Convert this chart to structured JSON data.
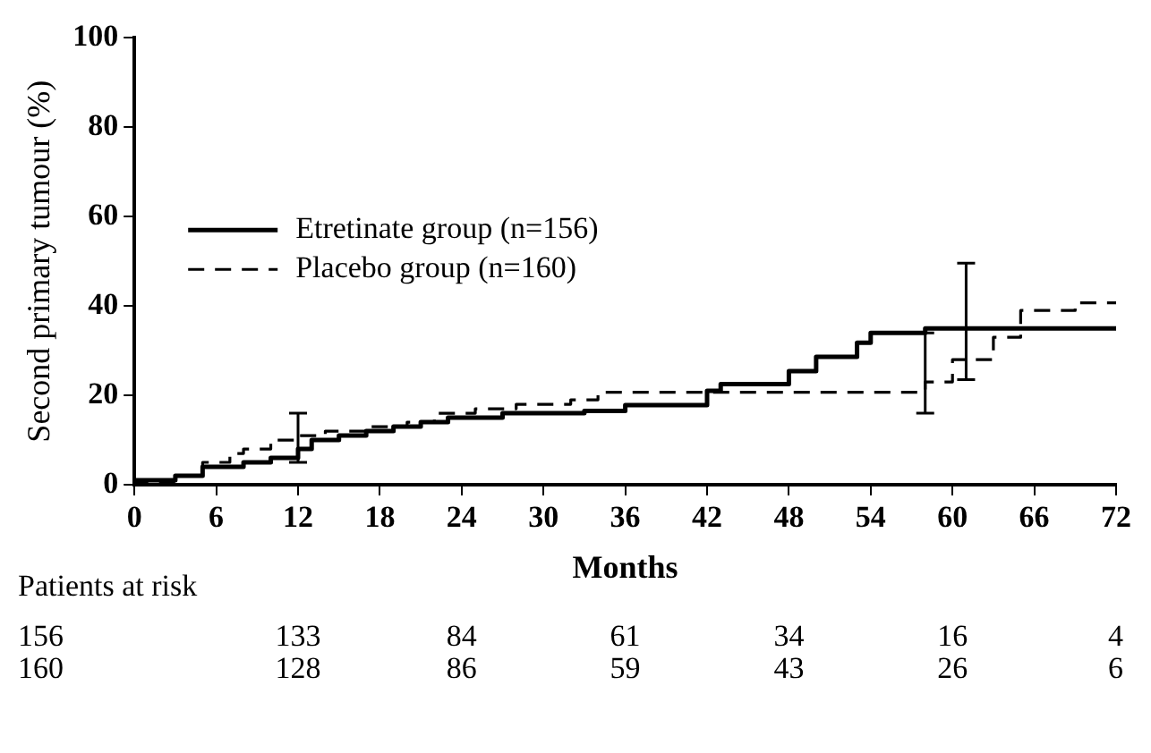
{
  "chart_data": {
    "type": "step",
    "xlabel": "Months",
    "ylabel": "Second primary tumour (%)",
    "xlim": [
      0,
      72
    ],
    "xticks": [
      0,
      6,
      12,
      18,
      24,
      30,
      36,
      42,
      48,
      54,
      60,
      66,
      72
    ],
    "ylim": [
      0,
      100
    ],
    "yticks": [
      0,
      20,
      40,
      60,
      80,
      100
    ],
    "grid": false,
    "legend": "left",
    "marker": "none",
    "series": [
      {
        "name": "Etretinate group (n=156)",
        "color": "#000000",
        "line_style": "solid",
        "x": [
          0,
          3,
          5,
          8,
          10,
          12,
          13,
          15,
          17,
          19,
          21,
          23,
          27,
          33,
          36,
          42,
          43,
          48,
          50,
          53,
          54,
          58,
          59,
          61,
          72
        ],
        "values": [
          0,
          1,
          2,
          4,
          5,
          6,
          8,
          10,
          11,
          12,
          13,
          14,
          15,
          16,
          16.5,
          17.8,
          21,
          22.5,
          25.4,
          28.6,
          31.8,
          34,
          35,
          35,
          35
        ],
        "errors": [
          null,
          null,
          null,
          null,
          null,
          null,
          null,
          null,
          null,
          null,
          null,
          null,
          null,
          null,
          null,
          null,
          null,
          null,
          null,
          null,
          null,
          null,
          null,
          [
            23.5,
            49.6
          ],
          null
        ]
      },
      {
        "name": "Placebo group (n=160)",
        "color": "#000000",
        "line_style": "dashed",
        "x": [
          0,
          3,
          5,
          7,
          8,
          10,
          12,
          14,
          17,
          20,
          22,
          25,
          28,
          32,
          34,
          40,
          58,
          60,
          63,
          65,
          69,
          70,
          72
        ],
        "values": [
          0,
          0.5,
          2,
          5,
          7,
          8,
          10,
          11,
          12,
          13,
          14,
          16,
          17,
          18,
          19,
          20.7,
          20.7,
          23,
          28,
          33,
          39,
          40.7,
          40.7
        ],
        "errors": [
          null,
          null,
          null,
          null,
          null,
          null,
          [
            5,
            16
          ],
          null,
          null,
          null,
          null,
          null,
          null,
          null,
          null,
          null,
          [
            16,
            34
          ],
          null,
          null,
          null,
          null,
          null,
          null
        ]
      }
    ],
    "annotations": [
      "Patients at risk",
      "156 133 84 61 34 16 4",
      "160 128 86 59 43 26 6"
    ]
  }
}
